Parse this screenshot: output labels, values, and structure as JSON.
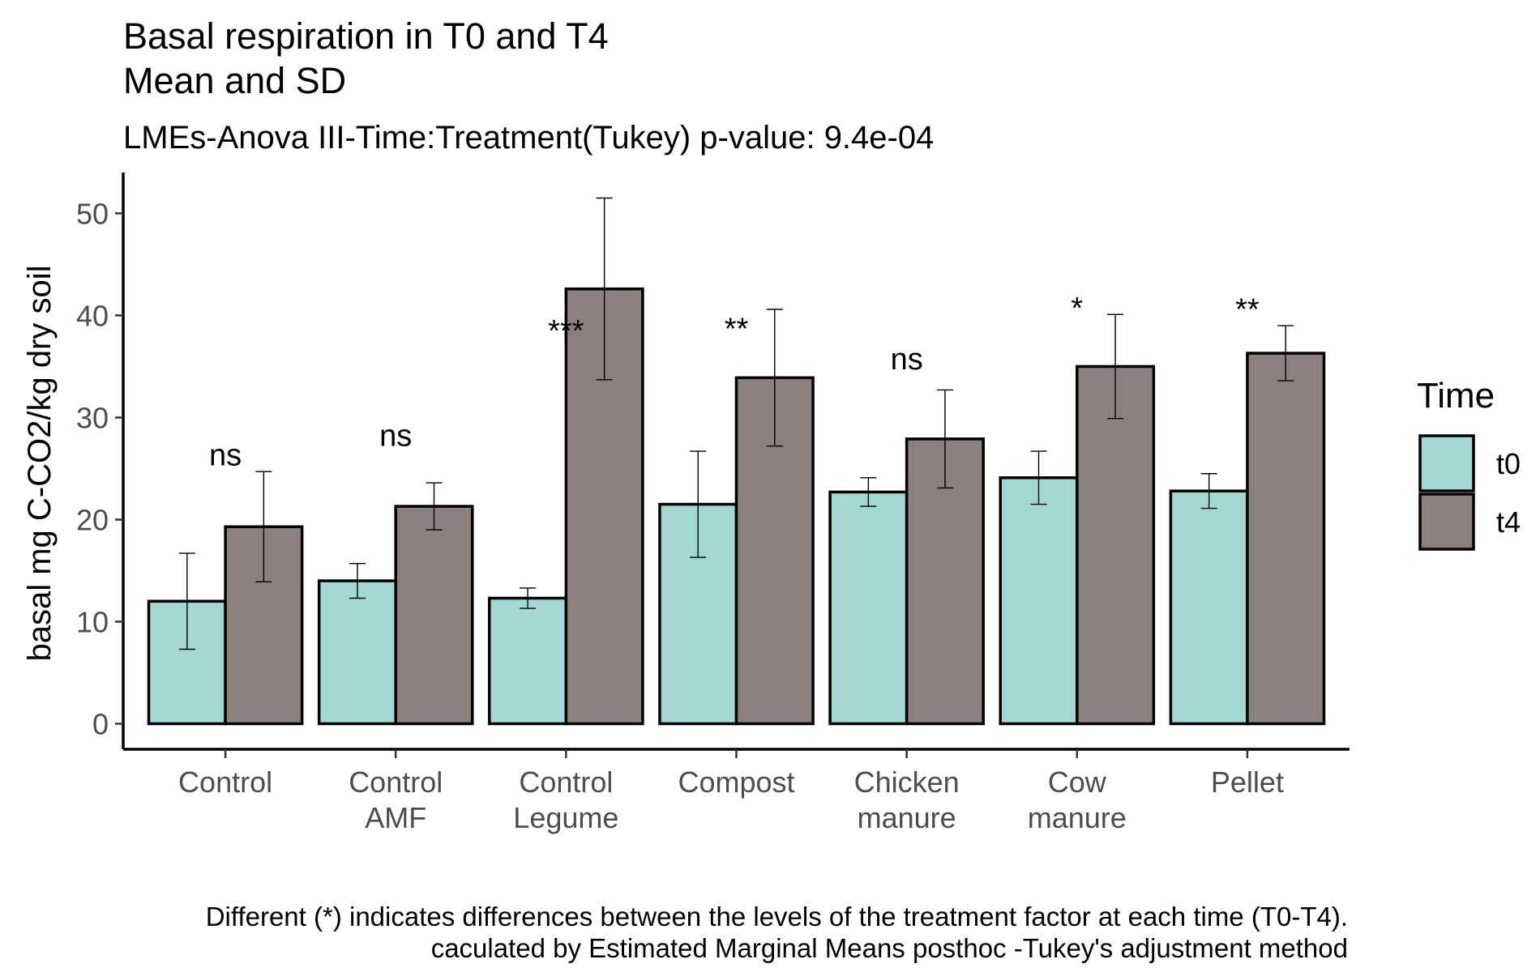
{
  "chart_data": {
    "type": "bar",
    "title": "Basal respiration in T0 and T4",
    "title_line2": "Mean and SD",
    "subtitle": "LMEs-Anova III-Time:Treatment(Tukey) p-value: 9.4e-04",
    "ylabel": "basal mg C-CO2/kg dry soil",
    "xlabel": "",
    "ylim": [
      -2.5,
      54
    ],
    "yticks": [
      0,
      10,
      20,
      30,
      40,
      50
    ],
    "categories": [
      [
        "Control"
      ],
      [
        "Control",
        "AMF"
      ],
      [
        "Control",
        "Legume"
      ],
      [
        "Compost"
      ],
      [
        "Chicken",
        "manure"
      ],
      [
        "Cow",
        "manure"
      ],
      [
        "Pellet"
      ]
    ],
    "series": [
      {
        "name": "t0",
        "color": "#a3d7d4",
        "values": [
          12.0,
          14.0,
          12.3,
          21.5,
          22.7,
          24.1,
          22.8
        ],
        "sd": [
          4.7,
          1.7,
          1.0,
          5.2,
          1.4,
          2.6,
          1.7
        ]
      },
      {
        "name": "t4",
        "color": "#8b807d",
        "values": [
          19.3,
          21.3,
          42.6,
          33.9,
          27.9,
          35.0,
          36.3
        ],
        "sd": [
          5.4,
          2.3,
          8.9,
          6.7,
          4.8,
          5.1,
          2.7
        ]
      }
    ],
    "significance": [
      {
        "label": "ns",
        "y": 25.3
      },
      {
        "label": "ns",
        "y": 27.2
      },
      {
        "label": "***",
        "y": 37.5
      },
      {
        "label": "**",
        "y": 37.7
      },
      {
        "label": "ns",
        "y": 34.7
      },
      {
        "label": "*",
        "y": 39.7
      },
      {
        "label": "**",
        "y": 39.6
      }
    ],
    "legend": {
      "title": "Time",
      "position": "right",
      "items": [
        "t0",
        "t4"
      ]
    },
    "caption": [
      "Different (*) indicates differences between the levels of the treatment factor at each time (T0-T4).",
      "caculated by Estimated Marginal Means posthoc -Tukey's adjustment method"
    ],
    "grid": false
  }
}
